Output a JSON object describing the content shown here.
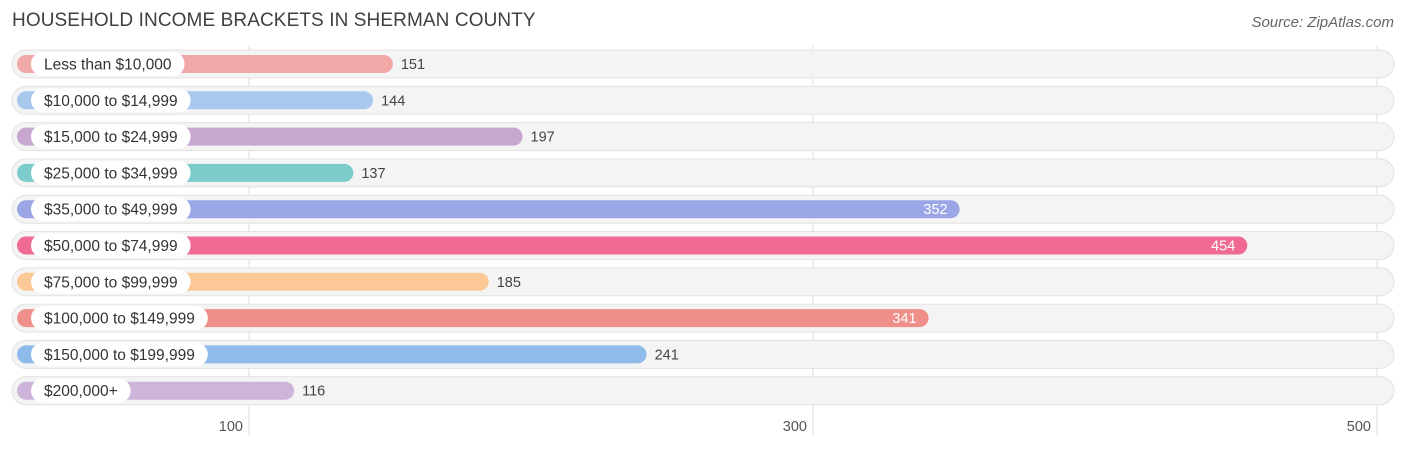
{
  "header": {
    "title": "HOUSEHOLD INCOME BRACKETS IN SHERMAN COUNTY",
    "source": "Source: ZipAtlas.com"
  },
  "chart_data": {
    "type": "bar",
    "orientation": "horizontal",
    "title": "HOUSEHOLD INCOME BRACKETS IN SHERMAN COUNTY",
    "categories": [
      "Less than $10,000",
      "$10,000 to $14,999",
      "$15,000 to $24,999",
      "$25,000 to $34,999",
      "$35,000 to $49,999",
      "$50,000 to $74,999",
      "$75,000 to $99,999",
      "$100,000 to $149,999",
      "$150,000 to $199,999",
      "$200,000+"
    ],
    "values": [
      151,
      144,
      197,
      137,
      352,
      454,
      185,
      341,
      241,
      116
    ],
    "colors": [
      "#f0a8a8",
      "#a8c8ee",
      "#c7a6d0",
      "#7ccccc",
      "#9aa6e6",
      "#f06b94",
      "#fbc896",
      "#ee8f8a",
      "#8ebbe9",
      "#cfb4da"
    ],
    "xticks": [
      100,
      300,
      500
    ],
    "xlim": [
      20,
      515
    ],
    "grid": true,
    "legend": "none"
  }
}
